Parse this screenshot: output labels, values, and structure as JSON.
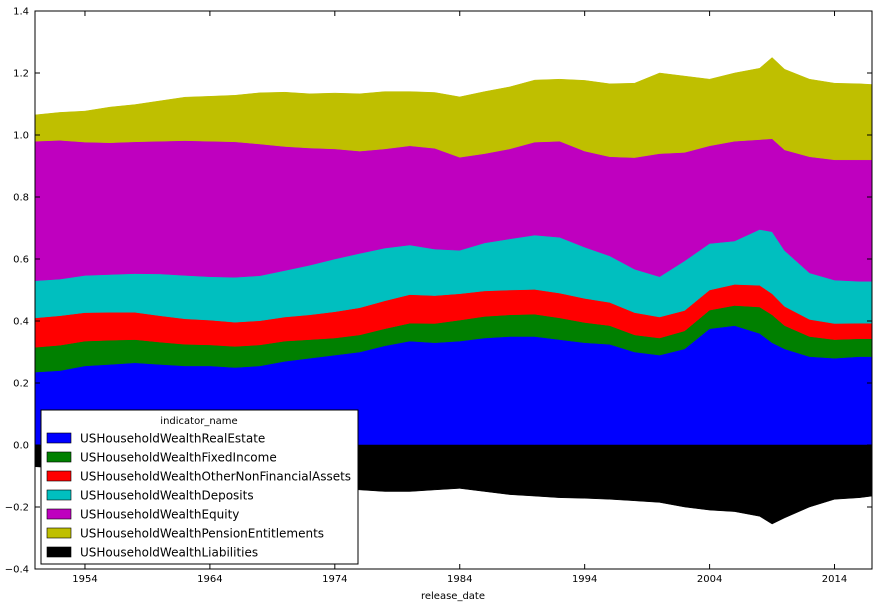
{
  "chart_data": {
    "type": "area",
    "stacked": true,
    "xlabel": "release_date",
    "ylabel": "",
    "xlim": [
      1950,
      2017
    ],
    "ylim": [
      -0.4,
      1.4
    ],
    "xticks": [
      1954,
      1964,
      1974,
      1984,
      1994,
      2004,
      2014
    ],
    "yticks": [
      -0.4,
      -0.2,
      0.0,
      0.2,
      0.4,
      0.6,
      0.8,
      1.0,
      1.2,
      1.4
    ],
    "ytick_labels": [
      "−0.4",
      "−0.2",
      "0.0",
      "0.2",
      "0.4",
      "0.6",
      "0.8",
      "1.0",
      "1.2",
      "1.4"
    ],
    "legend": {
      "title": "indicator_name",
      "position": "bottom-left"
    },
    "grid": false,
    "x": [
      1950,
      1952,
      1954,
      1956,
      1958,
      1960,
      1962,
      1964,
      1966,
      1968,
      1970,
      1972,
      1974,
      1976,
      1978,
      1980,
      1982,
      1984,
      1986,
      1988,
      1990,
      1992,
      1994,
      1996,
      1998,
      2000,
      2002,
      2004,
      2006,
      2008,
      2009,
      2010,
      2012,
      2014,
      2016,
      2017
    ],
    "series": [
      {
        "name": "USHouseholdWealthRealEstate",
        "color": "#0000ff",
        "values": [
          0.235,
          0.24,
          0.255,
          0.26,
          0.265,
          0.26,
          0.255,
          0.255,
          0.25,
          0.255,
          0.27,
          0.28,
          0.29,
          0.3,
          0.32,
          0.335,
          0.33,
          0.335,
          0.345,
          0.35,
          0.35,
          0.34,
          0.33,
          0.325,
          0.3,
          0.29,
          0.31,
          0.375,
          0.385,
          0.36,
          0.33,
          0.31,
          0.285,
          0.28,
          0.285,
          0.285
        ]
      },
      {
        "name": "USHouseholdWealthFixedIncome",
        "color": "#008000",
        "values": [
          0.08,
          0.082,
          0.08,
          0.078,
          0.075,
          0.072,
          0.07,
          0.068,
          0.068,
          0.068,
          0.065,
          0.06,
          0.055,
          0.055,
          0.055,
          0.058,
          0.062,
          0.068,
          0.07,
          0.07,
          0.072,
          0.07,
          0.065,
          0.06,
          0.055,
          0.055,
          0.058,
          0.06,
          0.065,
          0.085,
          0.09,
          0.075,
          0.065,
          0.06,
          0.058,
          0.058
        ]
      },
      {
        "name": "USHouseholdWealthOtherNonFinancialAssets",
        "color": "#ff0000",
        "values": [
          0.095,
          0.095,
          0.092,
          0.09,
          0.088,
          0.085,
          0.082,
          0.08,
          0.078,
          0.078,
          0.078,
          0.08,
          0.085,
          0.088,
          0.09,
          0.092,
          0.09,
          0.085,
          0.082,
          0.08,
          0.08,
          0.08,
          0.078,
          0.075,
          0.072,
          0.068,
          0.066,
          0.065,
          0.068,
          0.07,
          0.068,
          0.062,
          0.055,
          0.052,
          0.05,
          0.05
        ]
      },
      {
        "name": "USHouseholdWealthDeposits",
        "color": "#00bfbf",
        "values": [
          0.12,
          0.118,
          0.12,
          0.122,
          0.125,
          0.135,
          0.14,
          0.14,
          0.145,
          0.145,
          0.15,
          0.16,
          0.17,
          0.175,
          0.17,
          0.16,
          0.15,
          0.14,
          0.155,
          0.165,
          0.175,
          0.18,
          0.165,
          0.15,
          0.14,
          0.13,
          0.16,
          0.15,
          0.14,
          0.18,
          0.2,
          0.18,
          0.15,
          0.14,
          0.135,
          0.135
        ]
      },
      {
        "name": "USHouseholdWealthEquity",
        "color": "#bf00bf",
        "values": [
          0.45,
          0.448,
          0.43,
          0.425,
          0.425,
          0.428,
          0.435,
          0.437,
          0.437,
          0.425,
          0.4,
          0.378,
          0.355,
          0.33,
          0.32,
          0.32,
          0.325,
          0.3,
          0.288,
          0.29,
          0.3,
          0.31,
          0.31,
          0.32,
          0.36,
          0.397,
          0.35,
          0.315,
          0.322,
          0.29,
          0.3,
          0.325,
          0.375,
          0.388,
          0.392,
          0.392
        ]
      },
      {
        "name": "USHouseholdWealthPensionEntitlements",
        "color": "#bfbf00",
        "values": [
          0.085,
          0.09,
          0.1,
          0.115,
          0.12,
          0.13,
          0.14,
          0.145,
          0.15,
          0.165,
          0.175,
          0.175,
          0.18,
          0.185,
          0.185,
          0.175,
          0.18,
          0.195,
          0.2,
          0.2,
          0.2,
          0.2,
          0.228,
          0.235,
          0.24,
          0.26,
          0.246,
          0.215,
          0.22,
          0.23,
          0.262,
          0.26,
          0.25,
          0.247,
          0.245,
          0.243
        ]
      },
      {
        "name": "USHouseholdWealthLiabilities",
        "color": "#000000",
        "values": [
          -0.07,
          -0.075,
          -0.085,
          -0.095,
          -0.105,
          -0.115,
          -0.12,
          -0.125,
          -0.128,
          -0.13,
          -0.132,
          -0.135,
          -0.14,
          -0.145,
          -0.15,
          -0.15,
          -0.145,
          -0.14,
          -0.15,
          -0.16,
          -0.165,
          -0.17,
          -0.172,
          -0.175,
          -0.18,
          -0.185,
          -0.2,
          -0.21,
          -0.215,
          -0.23,
          -0.255,
          -0.235,
          -0.2,
          -0.175,
          -0.17,
          -0.165
        ]
      }
    ]
  }
}
